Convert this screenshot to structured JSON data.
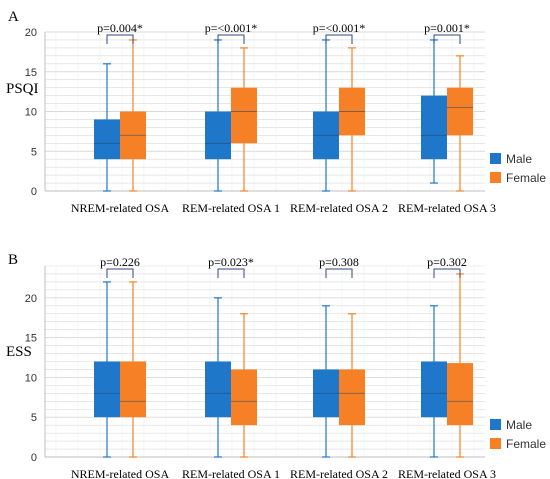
{
  "colors": {
    "male": "#1f77c9",
    "female": "#f58025",
    "grid": "#d9d9d9",
    "axis": "#bfbfbf",
    "bracket": "#2e4a7d"
  },
  "chart_data": [
    {
      "type": "box",
      "panel_label": "A",
      "ylabel": "PSQI",
      "ylim": [
        0,
        20
      ],
      "yticks": [
        0,
        5,
        10,
        15,
        20
      ],
      "grid": true,
      "legend_position": "right",
      "categories": [
        "NREM-related OSA",
        "REM-related OSA 1",
        "REM-related OSA 2",
        "REM-related OSA 3"
      ],
      "pvalues": [
        "p=0.004*",
        "p=<0.001*",
        "p=<0.001*",
        "p=0.001*"
      ],
      "series": [
        {
          "name": "Male",
          "boxes": [
            {
              "min": 0,
              "q1": 4,
              "median": 6,
              "q3": 9,
              "max": 16
            },
            {
              "min": 0,
              "q1": 4,
              "median": 6,
              "q3": 10,
              "max": 19
            },
            {
              "min": 0,
              "q1": 4,
              "median": 7,
              "q3": 10,
              "max": 19
            },
            {
              "min": 1,
              "q1": 4,
              "median": 7,
              "q3": 12,
              "max": 19
            }
          ]
        },
        {
          "name": "Female",
          "boxes": [
            {
              "min": 0,
              "q1": 4,
              "median": 7,
              "q3": 10,
              "max": 19
            },
            {
              "min": 0,
              "q1": 6,
              "median": 10,
              "q3": 13,
              "max": 18
            },
            {
              "min": 0,
              "q1": 7,
              "median": 10,
              "q3": 13,
              "max": 18
            },
            {
              "min": 0,
              "q1": 7,
              "median": 10.5,
              "q3": 13,
              "max": 17
            }
          ]
        }
      ]
    },
    {
      "type": "box",
      "panel_label": "B",
      "ylabel": "ESS",
      "ylim": [
        0,
        24
      ],
      "yticks": [
        0,
        5,
        10,
        15,
        20
      ],
      "grid": true,
      "legend_position": "right",
      "categories": [
        "NREM-related OSA",
        "REM-related OSA 1",
        "REM-related OSA 2",
        "REM-related OSA 3"
      ],
      "pvalues": [
        "p=0.226",
        "p=0.023*",
        "p=0.308",
        "p=0.302"
      ],
      "series": [
        {
          "name": "Male",
          "boxes": [
            {
              "min": 0,
              "q1": 5,
              "median": 8,
              "q3": 12,
              "max": 22
            },
            {
              "min": 0,
              "q1": 5,
              "median": 8,
              "q3": 12,
              "max": 20
            },
            {
              "min": 0,
              "q1": 5,
              "median": 8,
              "q3": 11,
              "max": 19
            },
            {
              "min": 0,
              "q1": 5,
              "median": 8,
              "q3": 12,
              "max": 19
            }
          ]
        },
        {
          "name": "Female",
          "boxes": [
            {
              "min": 0,
              "q1": 5,
              "median": 7,
              "q3": 12,
              "max": 22
            },
            {
              "min": 0,
              "q1": 4,
              "median": 7,
              "q3": 11,
              "max": 18
            },
            {
              "min": 0,
              "q1": 4,
              "median": 8,
              "q3": 11,
              "max": 18
            },
            {
              "min": 0,
              "q1": 4,
              "median": 7,
              "q3": 11.8,
              "max": 23
            }
          ]
        }
      ]
    }
  ]
}
